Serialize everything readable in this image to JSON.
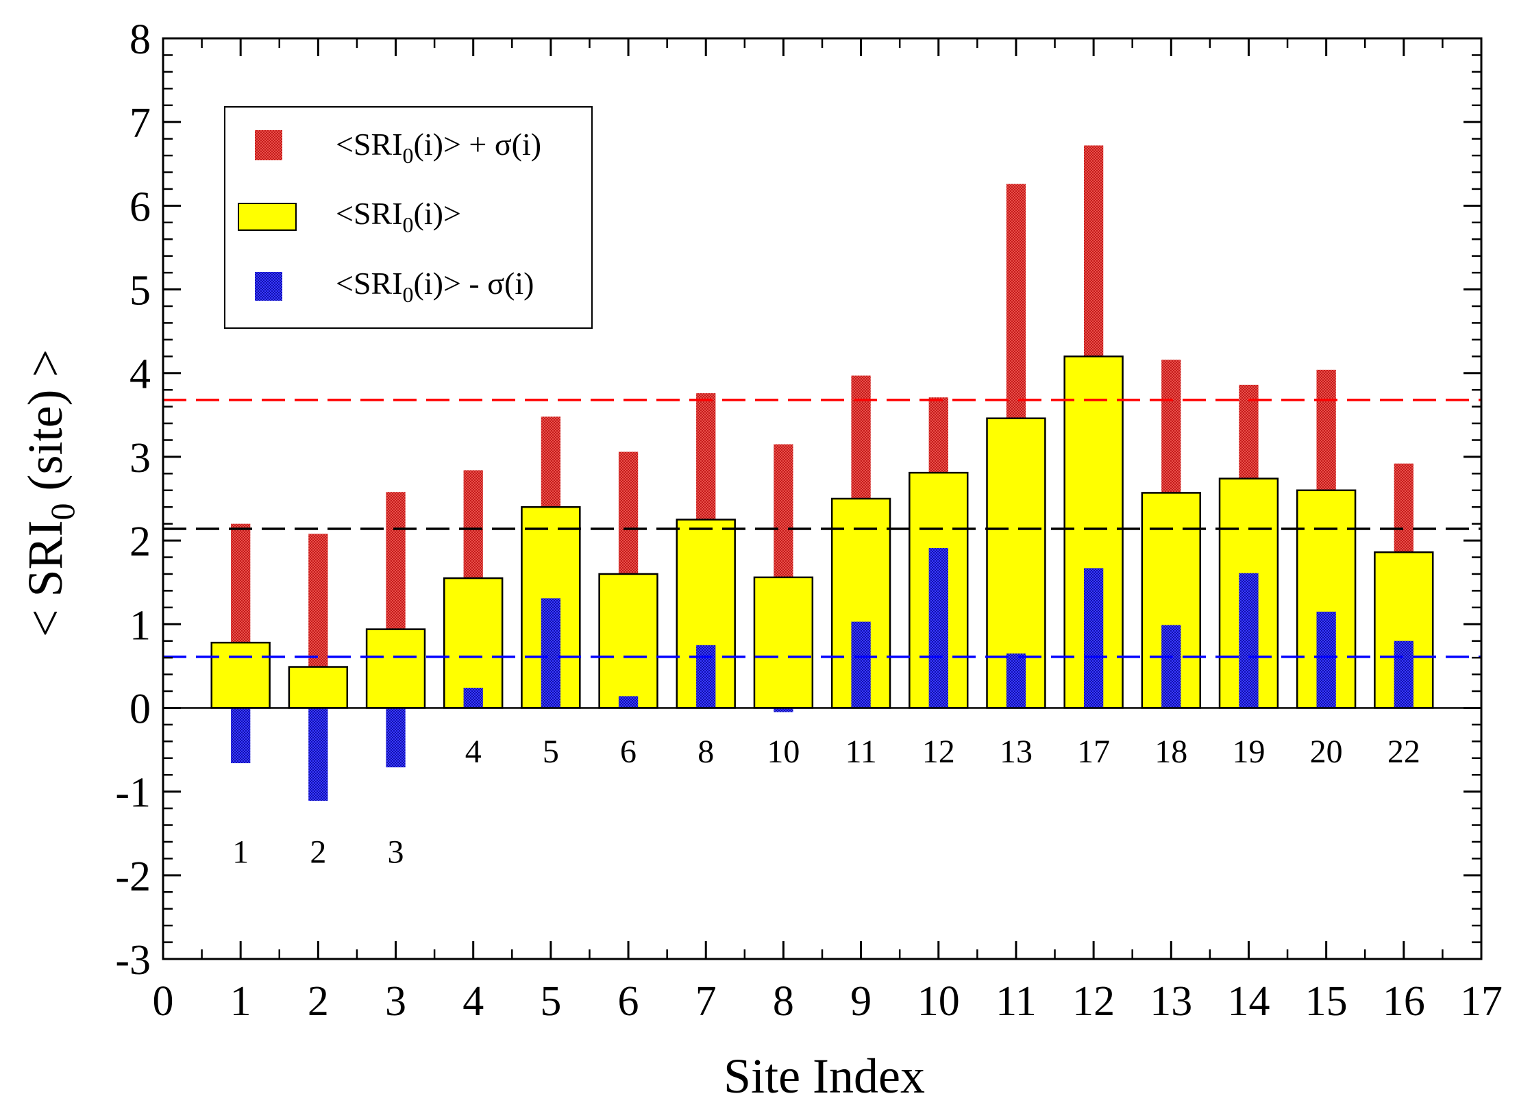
{
  "chart_data": {
    "type": "bar",
    "title": "",
    "xlabel": "Site Index",
    "ylabel": "< SRI",
    "ylabel_sub": "0",
    "ylabel_suffix": " (site) >",
    "xlim": [
      0,
      17
    ],
    "ylim": [
      -3,
      8
    ],
    "x_ticks": [
      "0",
      "1",
      "2",
      "3",
      "4",
      "5",
      "6",
      "7",
      "8",
      "9",
      "10",
      "11",
      "12",
      "13",
      "14",
      "15",
      "16",
      "17"
    ],
    "y_ticks": [
      "-3",
      "-2",
      "-1",
      "0",
      "1",
      "2",
      "3",
      "4",
      "5",
      "6",
      "7",
      "8"
    ],
    "x": [
      1,
      2,
      3,
      4,
      5,
      6,
      7,
      8,
      9,
      10,
      11,
      12,
      13,
      14,
      15,
      16
    ],
    "site_labels": [
      "1",
      "2",
      "3",
      "4",
      "5",
      "6",
      "8",
      "10",
      "11",
      "12",
      "13",
      "17",
      "18",
      "19",
      "20",
      "22"
    ],
    "series": [
      {
        "name": "<SRI0(i)> + σ(i)",
        "color": "#e03030",
        "values": [
          2.2,
          2.08,
          2.58,
          2.84,
          3.48,
          3.06,
          3.76,
          3.15,
          3.97,
          3.71,
          6.26,
          6.72,
          4.16,
          3.86,
          4.04,
          2.92
        ]
      },
      {
        "name": "<SRI0(i)>",
        "color": "#ffff00",
        "values": [
          0.78,
          0.49,
          0.94,
          1.55,
          2.4,
          1.6,
          2.25,
          1.56,
          2.5,
          2.81,
          3.46,
          4.2,
          2.57,
          2.74,
          2.6,
          1.86
        ]
      },
      {
        "name": "<SRI0(i)> - σ(i)",
        "color": "#2020e0",
        "values": [
          -0.66,
          -1.11,
          -0.71,
          0.24,
          1.31,
          0.14,
          0.75,
          -0.05,
          1.03,
          1.91,
          0.65,
          1.67,
          0.99,
          1.61,
          1.15,
          0.8
        ]
      }
    ],
    "reference_lines": [
      {
        "name": "upper-mean-line",
        "value": 3.68,
        "color": "#ff0000"
      },
      {
        "name": "mean-line",
        "value": 2.14,
        "color": "#000000"
      },
      {
        "name": "lower-mean-line",
        "value": 0.61,
        "color": "#0000ff"
      }
    ],
    "legend": {
      "placement": "top-left",
      "entries": [
        {
          "prefix": "<SRI",
          "sub": "0",
          "suffix": "(i)> + σ(i)"
        },
        {
          "prefix": "<SRI",
          "sub": "0",
          "suffix": "(i)>"
        },
        {
          "prefix": "<SRI",
          "sub": "0",
          "suffix": "(i)> - σ(i)"
        }
      ]
    }
  }
}
